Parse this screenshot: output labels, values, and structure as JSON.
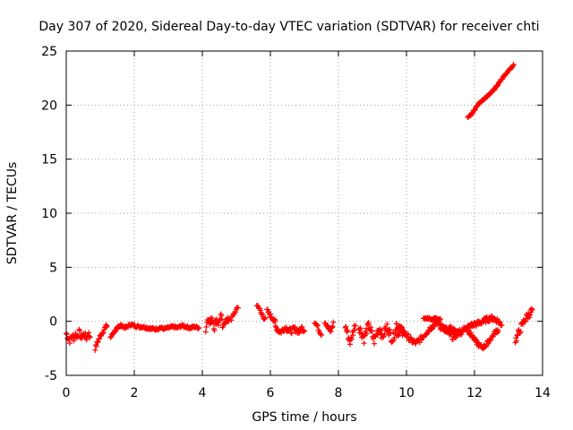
{
  "chart_data": {
    "type": "scatter",
    "title": "Day 307 of 2020, Sidereal Day-to-day VTEC variation (SDTVAR) for receiver chti",
    "xlabel": "GPS time / hours",
    "ylabel": "SDTVAR / TECUs",
    "xlim": [
      0,
      14
    ],
    "ylim": [
      -5,
      25
    ],
    "xticks": [
      0,
      2,
      4,
      6,
      8,
      10,
      12,
      14
    ],
    "yticks": [
      -5,
      0,
      5,
      10,
      15,
      20,
      25
    ],
    "grid": true,
    "marker": "+",
    "color": "#ff0000",
    "segments": [
      {
        "x0": 0.0,
        "x1": 0.7,
        "y": [
          -1.1,
          -1.5,
          -1.8,
          -1.3,
          -1.6,
          -1.2,
          -1.4,
          -1.0,
          -1.5,
          -1.3,
          -1.2,
          -1.6,
          -1.1,
          -1.4
        ],
        "jitter": 0.3
      },
      {
        "x0": 0.85,
        "x1": 1.2,
        "y": [
          -2.5,
          -2.0,
          -1.6,
          -1.2,
          -0.9,
          -0.6,
          -0.4
        ],
        "jitter": 0.2
      },
      {
        "x0": 1.3,
        "x1": 1.6,
        "y": [
          -1.5,
          -1.1,
          -0.8,
          -0.6,
          -0.5
        ],
        "jitter": 0.15
      },
      {
        "x0": 1.5,
        "x1": 3.9,
        "y": [
          -0.5,
          -0.4,
          -0.6,
          -0.3,
          -0.4,
          -0.5,
          -0.5,
          -0.6,
          -0.7,
          -0.7,
          -0.6,
          -0.7,
          -0.6,
          -0.5,
          -0.6,
          -0.4,
          -0.5,
          -0.6,
          -0.5,
          -0.6
        ],
        "jitter": 0.12
      },
      {
        "x0": 4.1,
        "x1": 4.8,
        "y": [
          -0.8,
          0.5,
          -0.3,
          0.4,
          -0.6,
          0.2,
          -0.2,
          0.6,
          -0.8,
          0.3,
          -0.1,
          0.4
        ],
        "jitter": 0.35
      },
      {
        "x0": 4.85,
        "x1": 5.05,
        "y": [
          0.2,
          0.6,
          1.0,
          1.3
        ],
        "jitter": 0.15
      },
      {
        "x0": 5.6,
        "x1": 5.85,
        "y": [
          1.5,
          1.3,
          0.8,
          0.4,
          0.2
        ],
        "jitter": 0.15
      },
      {
        "x0": 5.9,
        "x1": 6.15,
        "y": [
          1.0,
          0.6,
          0.3,
          -0.1
        ],
        "jitter": 0.2
      },
      {
        "x0": 6.15,
        "x1": 7.0,
        "y": [
          -0.5,
          -0.8,
          -1.0,
          -0.7,
          -0.6,
          -0.8,
          -0.9,
          -0.7,
          -0.8,
          -1.0,
          -0.6,
          -0.8
        ],
        "jitter": 0.25
      },
      {
        "x0": 7.3,
        "x1": 7.5,
        "y": [
          0.0,
          -0.4,
          -0.8,
          -1.2
        ],
        "jitter": 0.2
      },
      {
        "x0": 7.6,
        "x1": 7.85,
        "y": [
          0.0,
          -0.5,
          -1.0,
          -0.2
        ],
        "jitter": 0.2
      },
      {
        "x0": 8.2,
        "x1": 8.5,
        "y": [
          -0.4,
          -1.2,
          -2.0,
          -1.0,
          -0.3
        ],
        "jitter": 0.4
      },
      {
        "x0": 8.6,
        "x1": 9.9,
        "y": [
          -0.5,
          -1.0,
          -1.6,
          -0.8,
          -0.4,
          -1.2,
          -1.8,
          -1.0,
          -0.6,
          -1.4,
          -0.9,
          -0.5,
          -1.2,
          -1.7,
          -0.8,
          -1.1,
          -0.6,
          -1.3
        ],
        "jitter": 0.45
      },
      {
        "x0": 9.7,
        "x1": 11.6,
        "y": [
          -0.3,
          -0.6,
          -1.0,
          -1.4,
          -1.8,
          -2.0,
          -1.8,
          -1.4,
          -1.0,
          -0.6,
          -0.3,
          -0.1,
          -0.4,
          -0.8,
          -1.2,
          -1.5,
          -1.2,
          -0.8
        ],
        "jitter": 0.25
      },
      {
        "x0": 10.5,
        "x1": 11.0,
        "y": [
          0.2,
          0.3,
          0.2,
          0.3,
          0.2
        ],
        "jitter": 0.1
      },
      {
        "x0": 11.0,
        "x1": 12.8,
        "y": [
          -0.5,
          -0.8,
          -0.6,
          -0.9,
          -1.2,
          -0.7,
          -0.5,
          -0.3,
          -0.2,
          0.0,
          0.2,
          0.3,
          0.1,
          -0.3
        ],
        "jitter": 0.25
      },
      {
        "x0": 11.8,
        "x1": 12.7,
        "y": [
          -0.8,
          -1.2,
          -1.6,
          -2.0,
          -2.3,
          -2.4,
          -2.2,
          -1.8,
          -1.4,
          -1.0,
          -0.8
        ],
        "jitter": 0.2
      },
      {
        "x0": 13.2,
        "x1": 13.7,
        "y": [
          -1.8,
          -1.2,
          -0.6,
          0.0,
          0.4,
          0.7,
          1.0
        ],
        "jitter": 0.35
      },
      {
        "x0": 11.8,
        "x1": 13.15,
        "y": [
          18.8,
          19.2,
          19.8,
          20.3,
          20.6,
          20.9,
          21.3,
          21.8,
          22.3,
          22.8,
          23.3,
          23.7
        ],
        "jitter": 0.08
      }
    ]
  }
}
